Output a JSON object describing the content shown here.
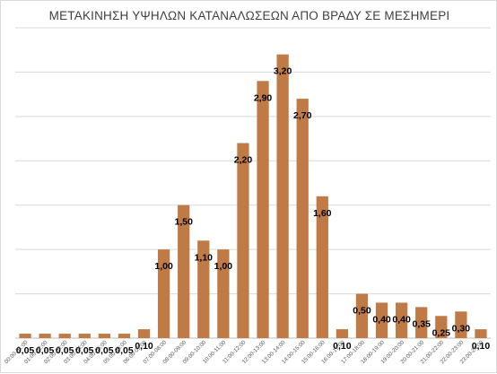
{
  "chart_data": {
    "type": "bar",
    "title": "ΜΕΤΑΚΙΝΗΣΗ ΥΨΗΛΩΝ ΚΑΤΑΝΑΛΩΣΕΩΝ ΑΠΟ ΒΡΑΔΥ ΣΕ ΜΕΣΗΜΕΡΙ",
    "xlabel": "",
    "ylabel": "",
    "ylim": [
      0,
      3.5
    ],
    "grid": true,
    "legend": "none",
    "bar_color": "#c07a45",
    "categories": [
      "00:00-01:00",
      "01:00-02:00",
      "02:00-03:00",
      "03:00-04:00",
      "04:00-05:00",
      "05:00-06:00",
      "06:00-07:00",
      "07:00-08:00",
      "08:00-09:00",
      "09:00-10:00",
      "10:00-11:00",
      "11:00-12:00",
      "12:00-13:00",
      "13:00-14:00",
      "14:00-15:00",
      "15:00-16:00",
      "16:00-17:00",
      "17:00-18:00",
      "18:00-19:00",
      "19:00-20:00",
      "20:00-21:00",
      "21:00-22:00",
      "22:00-23:00",
      "23:00-24:00"
    ],
    "values": [
      0.05,
      0.05,
      0.05,
      0.05,
      0.05,
      0.05,
      0.1,
      1.0,
      1.5,
      1.1,
      1.0,
      2.2,
      2.9,
      3.2,
      2.7,
      1.6,
      0.1,
      0.5,
      0.4,
      0.4,
      0.35,
      0.25,
      0.3,
      0.1
    ],
    "data_labels": [
      "0,05",
      "0,05",
      "0,05",
      "0,05",
      "0,05",
      "0,05",
      "0,10",
      "1,00",
      "1,50",
      "1,10",
      "1,00",
      "2,20",
      "2,90",
      "3,20",
      "2,70",
      "1,60",
      "0,10",
      "0,50",
      "0,40",
      "0,40",
      "0,35",
      "0,25",
      "0,30",
      "0,10"
    ]
  }
}
